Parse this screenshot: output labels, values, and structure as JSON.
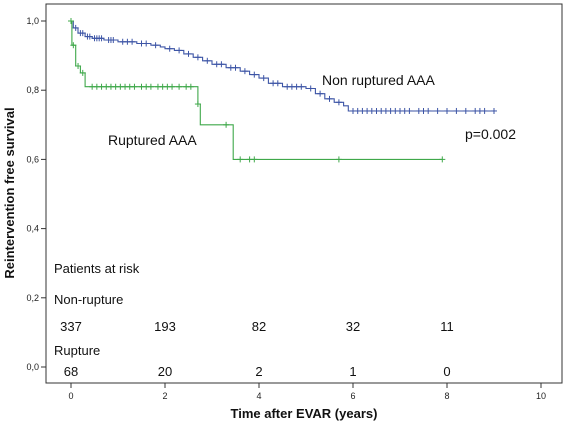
{
  "chart_data": {
    "type": "line",
    "title": "",
    "xlabel": "Time after EVAR (years)",
    "ylabel": "Reintervention free survival",
    "xlim": [
      0,
      10
    ],
    "ylim": [
      0,
      1
    ],
    "x_ticks": [
      "0",
      "2",
      "4",
      "6",
      "8",
      "10"
    ],
    "y_ticks": [
      "0,0",
      "0,2",
      "0,4",
      "0,6",
      "0,8",
      "1,0"
    ],
    "grid": false,
    "legend": "none",
    "series": [
      {
        "name": "Non ruptured AAA",
        "color": "#3d55a6",
        "step_points": [
          [
            0,
            1.0
          ],
          [
            0.05,
            0.98
          ],
          [
            0.15,
            0.965
          ],
          [
            0.3,
            0.955
          ],
          [
            0.45,
            0.95
          ],
          [
            0.7,
            0.945
          ],
          [
            1.0,
            0.94
          ],
          [
            1.4,
            0.935
          ],
          [
            1.7,
            0.93
          ],
          [
            1.9,
            0.925
          ],
          [
            2.0,
            0.92
          ],
          [
            2.2,
            0.915
          ],
          [
            2.4,
            0.905
          ],
          [
            2.6,
            0.895
          ],
          [
            2.8,
            0.885
          ],
          [
            3.0,
            0.875
          ],
          [
            3.3,
            0.865
          ],
          [
            3.6,
            0.855
          ],
          [
            3.8,
            0.845
          ],
          [
            4.0,
            0.835
          ],
          [
            4.2,
            0.82
          ],
          [
            4.5,
            0.81
          ],
          [
            5.0,
            0.805
          ],
          [
            5.2,
            0.79
          ],
          [
            5.4,
            0.775
          ],
          [
            5.6,
            0.765
          ],
          [
            5.8,
            0.755
          ],
          [
            5.9,
            0.74
          ],
          [
            9.0,
            0.74
          ]
        ],
        "censored_x": [
          0.1,
          0.2,
          0.25,
          0.35,
          0.4,
          0.5,
          0.55,
          0.6,
          0.65,
          0.8,
          0.85,
          0.9,
          1.1,
          1.2,
          1.3,
          1.5,
          1.6,
          1.8,
          2.1,
          2.3,
          2.5,
          2.7,
          2.9,
          3.1,
          3.2,
          3.4,
          3.5,
          3.7,
          3.9,
          4.1,
          4.3,
          4.4,
          4.6,
          4.7,
          4.8,
          4.9,
          5.1,
          5.3,
          5.5,
          5.7,
          6.0,
          6.1,
          6.2,
          6.3,
          6.4,
          6.5,
          6.6,
          6.7,
          6.8,
          6.9,
          7.0,
          7.1,
          7.2,
          7.4,
          7.5,
          7.6,
          7.8,
          8.0,
          8.2,
          8.4,
          8.6,
          8.7,
          8.8,
          9.0
        ]
      },
      {
        "name": "Ruptured AAA",
        "color": "#3fa84a",
        "step_points": [
          [
            0,
            1.0
          ],
          [
            0.02,
            0.93
          ],
          [
            0.1,
            0.87
          ],
          [
            0.2,
            0.85
          ],
          [
            0.3,
            0.81
          ],
          [
            2.6,
            0.81
          ],
          [
            2.7,
            0.76
          ],
          [
            2.75,
            0.7
          ],
          [
            3.4,
            0.7
          ],
          [
            3.45,
            0.6
          ],
          [
            7.9,
            0.6
          ]
        ],
        "censored_x": [
          0.0,
          0.05,
          0.15,
          0.25,
          0.45,
          0.55,
          0.65,
          0.75,
          0.85,
          0.95,
          1.05,
          1.15,
          1.25,
          1.35,
          1.5,
          1.6,
          1.7,
          1.85,
          1.95,
          2.05,
          2.15,
          2.3,
          2.45,
          2.55,
          2.7,
          3.3,
          3.6,
          3.8,
          3.9,
          5.7,
          7.9
        ]
      }
    ],
    "annotations": {
      "non_ruptured_label": "Non ruptured AAA",
      "ruptured_label": "Ruptured AAA",
      "p_value": "p=0.002"
    },
    "risk_table": {
      "title": "Patients at risk",
      "non_rupture_label": "Non-rupture",
      "non_rupture_counts": [
        "337",
        "193",
        "82",
        "32",
        "11"
      ],
      "rupture_label": "Rupture",
      "rupture_counts": [
        "68",
        "20",
        "2",
        "1",
        "0"
      ]
    }
  }
}
